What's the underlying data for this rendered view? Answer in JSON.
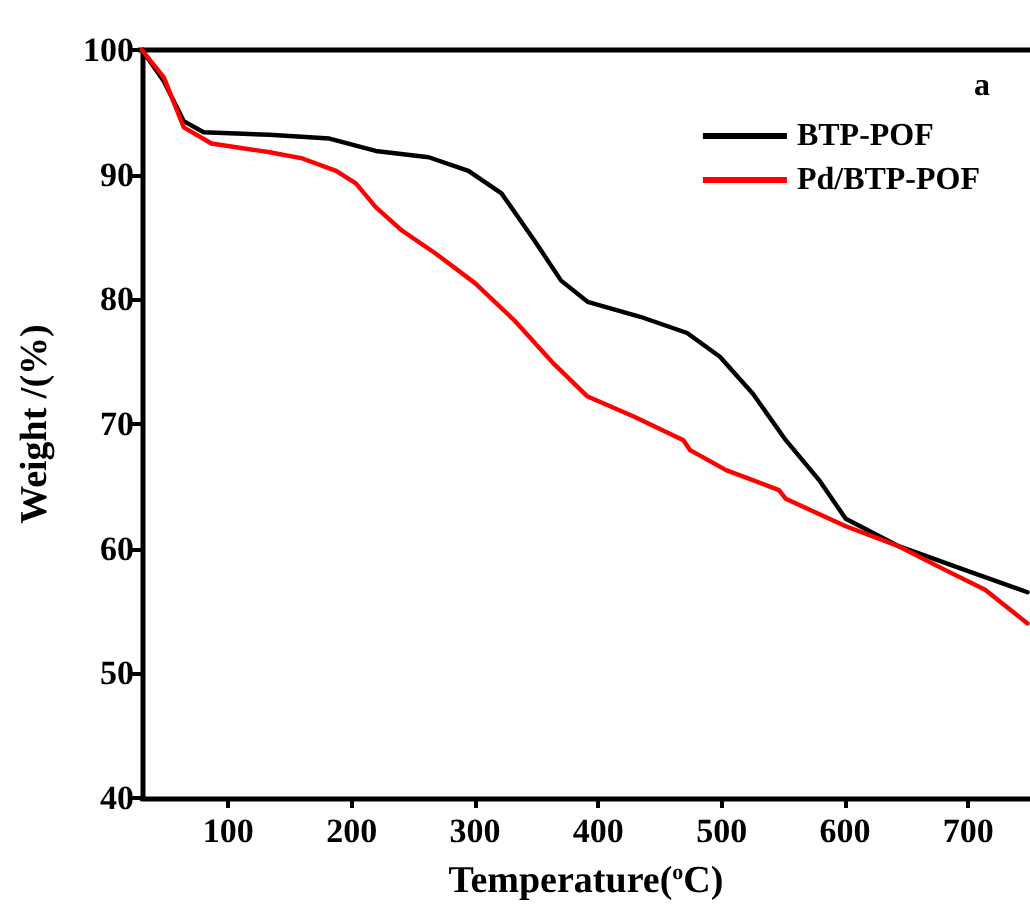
{
  "chart_data": {
    "type": "line",
    "xlabel": "Temperature($^{o}$C)",
    "ylabel": "Weight /(%)",
    "annotations": [
      "a"
    ],
    "xlim": [
      30,
      750
    ],
    "xticks": [
      100,
      200,
      300,
      400,
      500,
      600,
      700
    ],
    "ylim": [
      40,
      100
    ],
    "yticks": [
      40,
      50,
      60,
      70,
      80,
      90,
      100
    ],
    "grid": false,
    "legend": "top right",
    "marker": "none",
    "line_style": "solid",
    "series": [
      {
        "name": "BTP-POF",
        "color": "#000000",
        "x": [
          30,
          47.7,
          63.8,
          80,
          133.5,
          182,
          219.5,
          262.5,
          294.7,
          321.5,
          348.3,
          369.8,
          391.3,
          434,
          472,
          498.6,
          525.5,
          552,
          579,
          600.6,
          643.5,
          697,
          748
        ],
        "values": [
          100,
          97.5,
          94.3,
          93.4,
          93.2,
          92.9,
          91.9,
          91.4,
          90.3,
          88.5,
          84.7,
          81.5,
          79.8,
          78.6,
          77.3,
          75.4,
          72.4,
          68.7,
          65.5,
          62.4,
          60.2,
          58.3,
          56.5
        ]
      },
      {
        "name": "Pd/BTP-POF",
        "color": "#ff0000",
        "x": [
          30,
          47.7,
          63.8,
          86.3,
          133.5,
          160,
          187.4,
          203.4,
          219.5,
          241,
          267.8,
          300,
          332,
          364.2,
          391.3,
          428.7,
          469,
          474.4,
          503.6,
          546.5,
          552,
          600.6,
          643.5,
          681,
          713.6,
          748
        ],
        "values": [
          100,
          97.8,
          93.8,
          92.5,
          91.8,
          91.3,
          90.3,
          89.3,
          87.4,
          85.5,
          83.7,
          81.3,
          78.3,
          74.8,
          72.2,
          70.6,
          68.7,
          67.9,
          66.3,
          64.7,
          64.0,
          61.8,
          60.2,
          58.3,
          56.7,
          54.0
        ]
      }
    ]
  }
}
